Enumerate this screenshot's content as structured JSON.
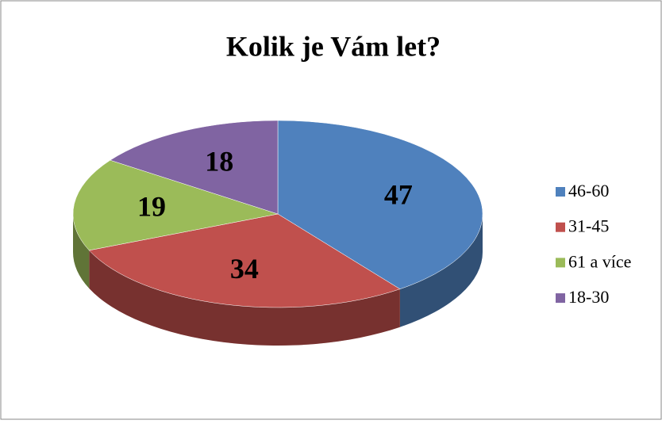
{
  "chart_data": {
    "type": "pie",
    "title": "Kolik je Vám let?",
    "categories": [
      "46-60",
      "31-45",
      "61 a více",
      "18-30"
    ],
    "values": [
      47,
      34,
      19,
      18
    ],
    "colors": [
      "#4f81bd",
      "#c0504d",
      "#9bbb59",
      "#8064a2"
    ],
    "legend": "right"
  }
}
